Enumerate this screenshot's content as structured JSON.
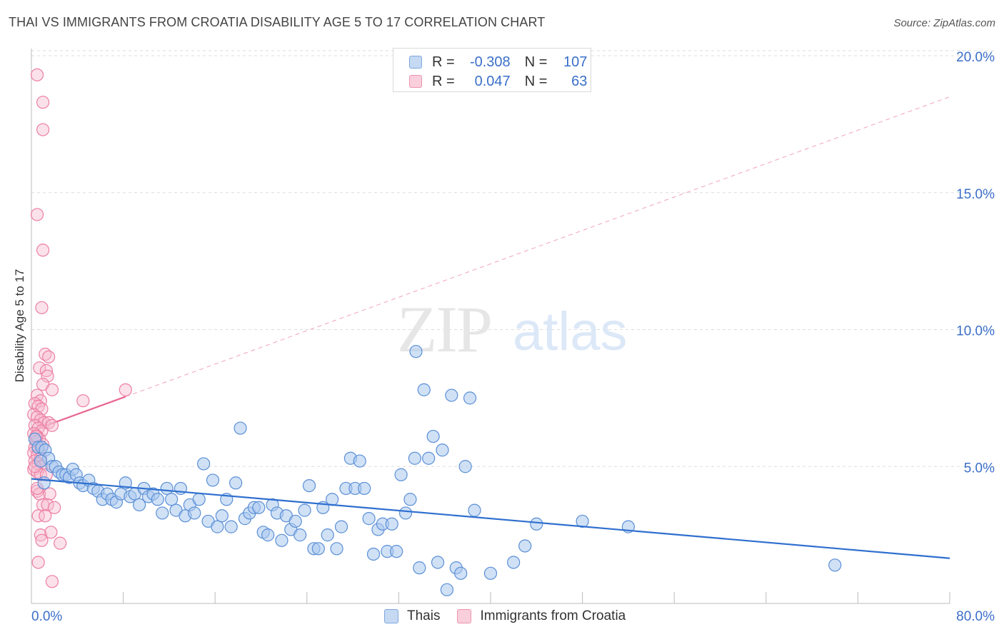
{
  "header": {
    "title": "THAI VS IMMIGRANTS FROM CROATIA DISABILITY AGE 5 TO 17 CORRELATION CHART",
    "source": "Source: ZipAtlas.com"
  },
  "watermark": {
    "zip": "ZIP",
    "atlas": "atlas"
  },
  "legend": {
    "rows": [
      {
        "r_label": "R =",
        "r_value": "-0.308",
        "n_label": "N =",
        "n_value": "107"
      },
      {
        "r_label": "R =",
        "r_value": "0.047",
        "n_label": "N =",
        "n_value": "63"
      }
    ],
    "bottom": [
      "Thais",
      "Immigrants from Croatia"
    ]
  },
  "colors": {
    "thais_fill": "#a9c8ef",
    "thais_stroke": "#5b8fd6",
    "thais_line": "#2f6fcf",
    "croatia_fill": "#f6bdd0",
    "croatia_stroke": "#ec7fa3",
    "croatia_line": "#e8668f",
    "tick_label": "#3b6fc9",
    "grid": "#dddddd"
  },
  "chart_data": {
    "type": "scatter",
    "title": "THAI VS IMMIGRANTS FROM CROATIA DISABILITY AGE 5 TO 17 CORRELATION CHART",
    "xlabel": "",
    "ylabel": "Disability Age 5 to 17",
    "xlim": [
      0,
      80
    ],
    "ylim": [
      0,
      20
    ],
    "x_tick_labels": [
      "0.0%",
      "80.0%"
    ],
    "y_ticks": [
      5,
      10,
      15,
      20
    ],
    "y_tick_labels": [
      "5.0%",
      "10.0%",
      "15.0%",
      "20.0%"
    ],
    "grid": true,
    "legend_position": "top-center",
    "series": [
      {
        "name": "Thais",
        "r": -0.308,
        "n": 107,
        "trend": {
          "x": [
            0,
            80
          ],
          "y": [
            4.55,
            1.65
          ],
          "style": "solid"
        },
        "points": [
          [
            0.3,
            6.0
          ],
          [
            0.6,
            5.7
          ],
          [
            0.9,
            5.7
          ],
          [
            1.2,
            5.6
          ],
          [
            1.5,
            5.3
          ],
          [
            1.8,
            5.0
          ],
          [
            2.1,
            5.0
          ],
          [
            2.4,
            4.8
          ],
          [
            2.7,
            4.7
          ],
          [
            3.0,
            4.7
          ],
          [
            3.3,
            4.6
          ],
          [
            3.6,
            4.9
          ],
          [
            3.9,
            4.7
          ],
          [
            4.2,
            4.4
          ],
          [
            4.5,
            4.3
          ],
          [
            5.0,
            4.5
          ],
          [
            5.4,
            4.2
          ],
          [
            5.8,
            4.1
          ],
          [
            6.2,
            3.8
          ],
          [
            6.6,
            4.0
          ],
          [
            7.0,
            3.8
          ],
          [
            7.4,
            3.7
          ],
          [
            7.8,
            4.0
          ],
          [
            8.2,
            4.4
          ],
          [
            8.6,
            3.9
          ],
          [
            9.0,
            4.0
          ],
          [
            9.4,
            3.6
          ],
          [
            9.8,
            4.2
          ],
          [
            10.2,
            3.9
          ],
          [
            10.6,
            4.0
          ],
          [
            11.0,
            3.8
          ],
          [
            11.4,
            3.3
          ],
          [
            11.8,
            4.2
          ],
          [
            12.2,
            3.8
          ],
          [
            12.6,
            3.4
          ],
          [
            13.0,
            4.2
          ],
          [
            13.4,
            3.2
          ],
          [
            13.8,
            3.6
          ],
          [
            14.2,
            3.3
          ],
          [
            14.6,
            3.8
          ],
          [
            15.0,
            5.1
          ],
          [
            15.4,
            3.0
          ],
          [
            15.8,
            4.5
          ],
          [
            16.2,
            2.8
          ],
          [
            16.6,
            3.2
          ],
          [
            17.0,
            3.8
          ],
          [
            17.4,
            2.8
          ],
          [
            17.8,
            4.4
          ],
          [
            18.2,
            6.4
          ],
          [
            18.6,
            3.1
          ],
          [
            19.0,
            3.3
          ],
          [
            19.4,
            3.5
          ],
          [
            19.8,
            3.5
          ],
          [
            20.2,
            2.6
          ],
          [
            20.6,
            2.5
          ],
          [
            21.0,
            3.6
          ],
          [
            21.4,
            3.3
          ],
          [
            21.8,
            2.3
          ],
          [
            22.2,
            3.2
          ],
          [
            22.6,
            2.7
          ],
          [
            23.0,
            3.0
          ],
          [
            23.4,
            2.5
          ],
          [
            23.8,
            3.4
          ],
          [
            24.2,
            4.3
          ],
          [
            24.6,
            2.0
          ],
          [
            25.0,
            2.0
          ],
          [
            25.4,
            3.5
          ],
          [
            25.8,
            2.5
          ],
          [
            26.2,
            3.8
          ],
          [
            26.6,
            2.0
          ],
          [
            27.0,
            2.8
          ],
          [
            27.4,
            4.2
          ],
          [
            27.8,
            5.3
          ],
          [
            28.2,
            4.2
          ],
          [
            28.6,
            5.2
          ],
          [
            29.0,
            4.2
          ],
          [
            29.4,
            3.1
          ],
          [
            29.8,
            1.8
          ],
          [
            30.2,
            2.7
          ],
          [
            30.6,
            2.9
          ],
          [
            31.0,
            1.9
          ],
          [
            31.4,
            2.9
          ],
          [
            31.8,
            1.9
          ],
          [
            32.2,
            4.7
          ],
          [
            32.6,
            3.3
          ],
          [
            33.0,
            3.8
          ],
          [
            33.4,
            5.3
          ],
          [
            33.8,
            1.3
          ],
          [
            34.2,
            7.8
          ],
          [
            34.6,
            5.3
          ],
          [
            35.0,
            6.1
          ],
          [
            35.4,
            1.5
          ],
          [
            35.8,
            5.6
          ],
          [
            36.2,
            0.5
          ],
          [
            36.6,
            7.6
          ],
          [
            37.0,
            1.3
          ],
          [
            37.4,
            1.1
          ],
          [
            37.8,
            5.0
          ],
          [
            38.2,
            7.5
          ],
          [
            38.6,
            3.4
          ],
          [
            40.0,
            1.1
          ],
          [
            42.0,
            1.5
          ],
          [
            43.0,
            2.1
          ],
          [
            44.0,
            2.9
          ],
          [
            48.0,
            3.0
          ],
          [
            52.0,
            2.8
          ],
          [
            70.0,
            1.4
          ],
          [
            33.5,
            9.2
          ],
          [
            0.8,
            5.2
          ],
          [
            1.1,
            4.4
          ]
        ]
      },
      {
        "name": "Immigrants from Croatia",
        "r": 0.047,
        "n": 63,
        "trend": {
          "x": [
            0,
            8.2
          ],
          "y": [
            6.3,
            7.55
          ],
          "style": "solid"
        },
        "trend_extended": {
          "x": [
            8.2,
            80
          ],
          "y": [
            7.55,
            18.5
          ],
          "style": "dashed"
        },
        "points": [
          [
            0.5,
            19.3
          ],
          [
            1.0,
            18.3
          ],
          [
            1.0,
            17.3
          ],
          [
            0.5,
            14.2
          ],
          [
            1.0,
            12.9
          ],
          [
            0.9,
            10.8
          ],
          [
            1.2,
            9.1
          ],
          [
            1.5,
            9.0
          ],
          [
            0.7,
            8.6
          ],
          [
            1.3,
            8.5
          ],
          [
            1.4,
            8.3
          ],
          [
            1.0,
            8.0
          ],
          [
            1.8,
            7.8
          ],
          [
            0.5,
            7.6
          ],
          [
            0.8,
            7.4
          ],
          [
            0.3,
            7.3
          ],
          [
            0.6,
            7.2
          ],
          [
            0.9,
            7.1
          ],
          [
            0.2,
            6.9
          ],
          [
            0.5,
            6.8
          ],
          [
            0.8,
            6.7
          ],
          [
            1.1,
            6.6
          ],
          [
            0.3,
            6.5
          ],
          [
            0.6,
            6.4
          ],
          [
            0.9,
            6.3
          ],
          [
            0.2,
            6.2
          ],
          [
            0.5,
            6.1
          ],
          [
            0.7,
            6.0
          ],
          [
            0.4,
            5.9
          ],
          [
            1.0,
            5.8
          ],
          [
            0.3,
            5.7
          ],
          [
            0.6,
            5.6
          ],
          [
            0.2,
            5.5
          ],
          [
            0.5,
            5.4
          ],
          [
            0.8,
            5.3
          ],
          [
            0.3,
            5.2
          ],
          [
            0.6,
            5.1
          ],
          [
            0.9,
            5.0
          ],
          [
            0.2,
            4.9
          ],
          [
            0.5,
            4.8
          ],
          [
            0.8,
            4.7
          ],
          [
            1.3,
            4.7
          ],
          [
            0.5,
            4.1
          ],
          [
            0.7,
            4.0
          ],
          [
            1.6,
            4.0
          ],
          [
            1.0,
            3.6
          ],
          [
            1.4,
            3.6
          ],
          [
            2.0,
            3.5
          ],
          [
            0.6,
            3.2
          ],
          [
            1.2,
            3.2
          ],
          [
            0.8,
            2.5
          ],
          [
            0.9,
            2.3
          ],
          [
            1.7,
            2.6
          ],
          [
            2.5,
            2.2
          ],
          [
            0.6,
            1.5
          ],
          [
            1.8,
            0.8
          ],
          [
            8.2,
            7.8
          ],
          [
            4.5,
            7.4
          ],
          [
            1.5,
            6.6
          ],
          [
            1.8,
            6.5
          ],
          [
            0.4,
            6.1
          ],
          [
            0.3,
            5.0
          ],
          [
            0.5,
            4.2
          ]
        ]
      }
    ]
  }
}
